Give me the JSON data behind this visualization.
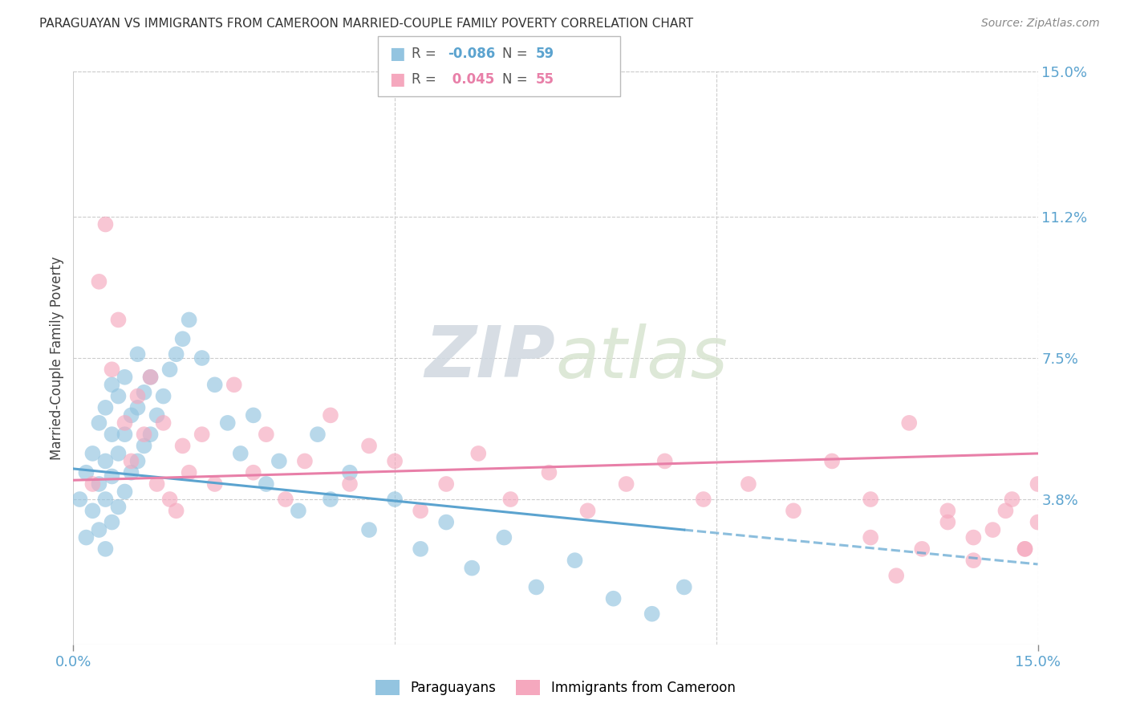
{
  "title": "PARAGUAYAN VS IMMIGRANTS FROM CAMEROON MARRIED-COUPLE FAMILY POVERTY CORRELATION CHART",
  "source": "Source: ZipAtlas.com",
  "ylabel": "Married-Couple Family Poverty",
  "xlim": [
    0,
    0.15
  ],
  "ylim": [
    0,
    0.15
  ],
  "ytick_labels_right": [
    "15.0%",
    "11.2%",
    "7.5%",
    "3.8%"
  ],
  "ytick_positions_right": [
    0.15,
    0.112,
    0.075,
    0.038
  ],
  "legend_label1": "Paraguayans",
  "legend_label2": "Immigrants from Cameroon",
  "R1": "-0.086",
  "N1": "59",
  "R2": "0.045",
  "N2": "55",
  "color_blue": "#93c4e0",
  "color_pink": "#f5a8be",
  "color_blue_line": "#5ba3cf",
  "color_pink_line": "#e87fa8",
  "background_color": "#ffffff",
  "watermark_zip": "ZIP",
  "watermark_atlas": "atlas",
  "par_x": [
    0.001,
    0.002,
    0.002,
    0.003,
    0.003,
    0.004,
    0.004,
    0.004,
    0.005,
    0.005,
    0.005,
    0.005,
    0.006,
    0.006,
    0.006,
    0.006,
    0.007,
    0.007,
    0.007,
    0.008,
    0.008,
    0.008,
    0.009,
    0.009,
    0.01,
    0.01,
    0.01,
    0.011,
    0.011,
    0.012,
    0.012,
    0.013,
    0.014,
    0.015,
    0.016,
    0.017,
    0.018,
    0.02,
    0.022,
    0.024,
    0.026,
    0.028,
    0.03,
    0.032,
    0.035,
    0.038,
    0.04,
    0.043,
    0.046,
    0.05,
    0.054,
    0.058,
    0.062,
    0.067,
    0.072,
    0.078,
    0.084,
    0.09,
    0.095
  ],
  "par_y": [
    0.038,
    0.028,
    0.045,
    0.035,
    0.05,
    0.03,
    0.042,
    0.058,
    0.025,
    0.038,
    0.048,
    0.062,
    0.032,
    0.044,
    0.055,
    0.068,
    0.036,
    0.05,
    0.065,
    0.04,
    0.055,
    0.07,
    0.045,
    0.06,
    0.048,
    0.062,
    0.076,
    0.052,
    0.066,
    0.055,
    0.07,
    0.06,
    0.065,
    0.072,
    0.076,
    0.08,
    0.085,
    0.075,
    0.068,
    0.058,
    0.05,
    0.06,
    0.042,
    0.048,
    0.035,
    0.055,
    0.038,
    0.045,
    0.03,
    0.038,
    0.025,
    0.032,
    0.02,
    0.028,
    0.015,
    0.022,
    0.012,
    0.008,
    0.015
  ],
  "cam_x": [
    0.003,
    0.004,
    0.005,
    0.006,
    0.007,
    0.008,
    0.009,
    0.01,
    0.011,
    0.012,
    0.013,
    0.014,
    0.015,
    0.016,
    0.017,
    0.018,
    0.02,
    0.022,
    0.025,
    0.028,
    0.03,
    0.033,
    0.036,
    0.04,
    0.043,
    0.046,
    0.05,
    0.054,
    0.058,
    0.063,
    0.068,
    0.074,
    0.08,
    0.086,
    0.092,
    0.098,
    0.105,
    0.112,
    0.118,
    0.124,
    0.13,
    0.136,
    0.14,
    0.145,
    0.148,
    0.15,
    0.15,
    0.148,
    0.146,
    0.143,
    0.14,
    0.136,
    0.132,
    0.128,
    0.124
  ],
  "cam_y": [
    0.042,
    0.095,
    0.11,
    0.072,
    0.085,
    0.058,
    0.048,
    0.065,
    0.055,
    0.07,
    0.042,
    0.058,
    0.038,
    0.035,
    0.052,
    0.045,
    0.055,
    0.042,
    0.068,
    0.045,
    0.055,
    0.038,
    0.048,
    0.06,
    0.042,
    0.052,
    0.048,
    0.035,
    0.042,
    0.05,
    0.038,
    0.045,
    0.035,
    0.042,
    0.048,
    0.038,
    0.042,
    0.035,
    0.048,
    0.038,
    0.058,
    0.032,
    0.028,
    0.035,
    0.025,
    0.032,
    0.042,
    0.025,
    0.038,
    0.03,
    0.022,
    0.035,
    0.025,
    0.018,
    0.028
  ],
  "blue_trend_x0": 0.0,
  "blue_trend_y0": 0.046,
  "blue_trend_x1": 0.095,
  "blue_trend_y1": 0.03,
  "blue_trend_dash_x0": 0.095,
  "blue_trend_dash_y0": 0.03,
  "blue_trend_dash_x1": 0.15,
  "blue_trend_dash_y1": 0.021,
  "pink_trend_x0": 0.0,
  "pink_trend_y0": 0.043,
  "pink_trend_x1": 0.15,
  "pink_trend_y1": 0.05
}
